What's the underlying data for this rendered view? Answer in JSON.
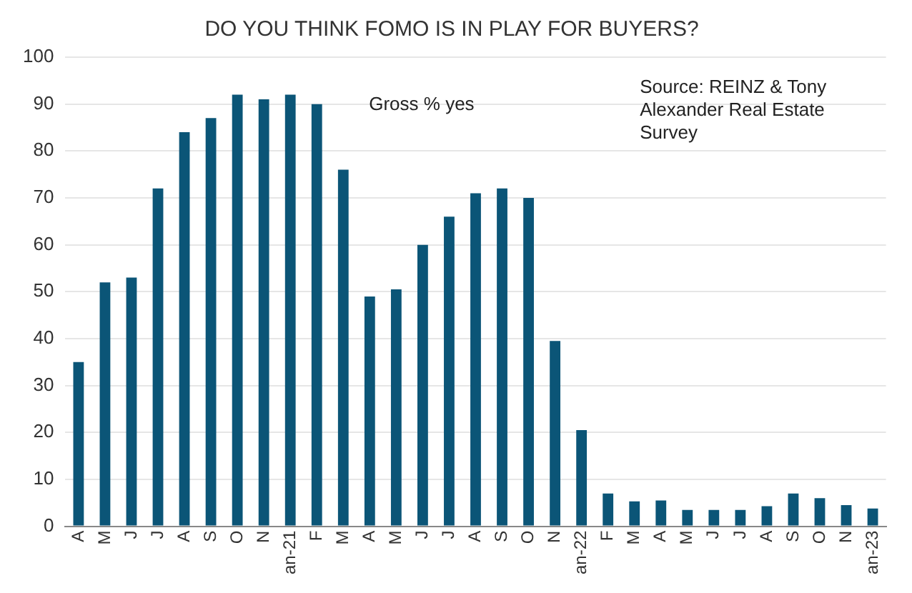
{
  "chart_data": {
    "type": "bar",
    "title": "DO YOU THINK FOMO IS IN PLAY FOR BUYERS?",
    "categories": [
      "A",
      "M",
      "J",
      "J",
      "A",
      "S",
      "O",
      "N",
      "an-21",
      "F",
      "M",
      "A",
      "M",
      "J",
      "J",
      "A",
      "S",
      "O",
      "N",
      "an-22",
      "F",
      "M",
      "A",
      "M",
      "J",
      "J",
      "A",
      "S",
      "O",
      "N",
      "an-23"
    ],
    "values": [
      35,
      52,
      53,
      72,
      84,
      87,
      92,
      91,
      92,
      90,
      76,
      49,
      50.5,
      60,
      66,
      71,
      72,
      70,
      39.5,
      20.5,
      7,
      5.3,
      5.5,
      3.5,
      3.5,
      3.5,
      4.3,
      7,
      6,
      4.5,
      3.8
    ],
    "color": "#0b5577",
    "ylim": [
      0,
      100
    ],
    "yticks": [
      0,
      10,
      20,
      30,
      40,
      50,
      60,
      70,
      80,
      90,
      100
    ],
    "grid": "y",
    "annotations": [
      "Gross % yes",
      "Source: REINZ & Tony Alexander Real Estate Survey"
    ]
  }
}
